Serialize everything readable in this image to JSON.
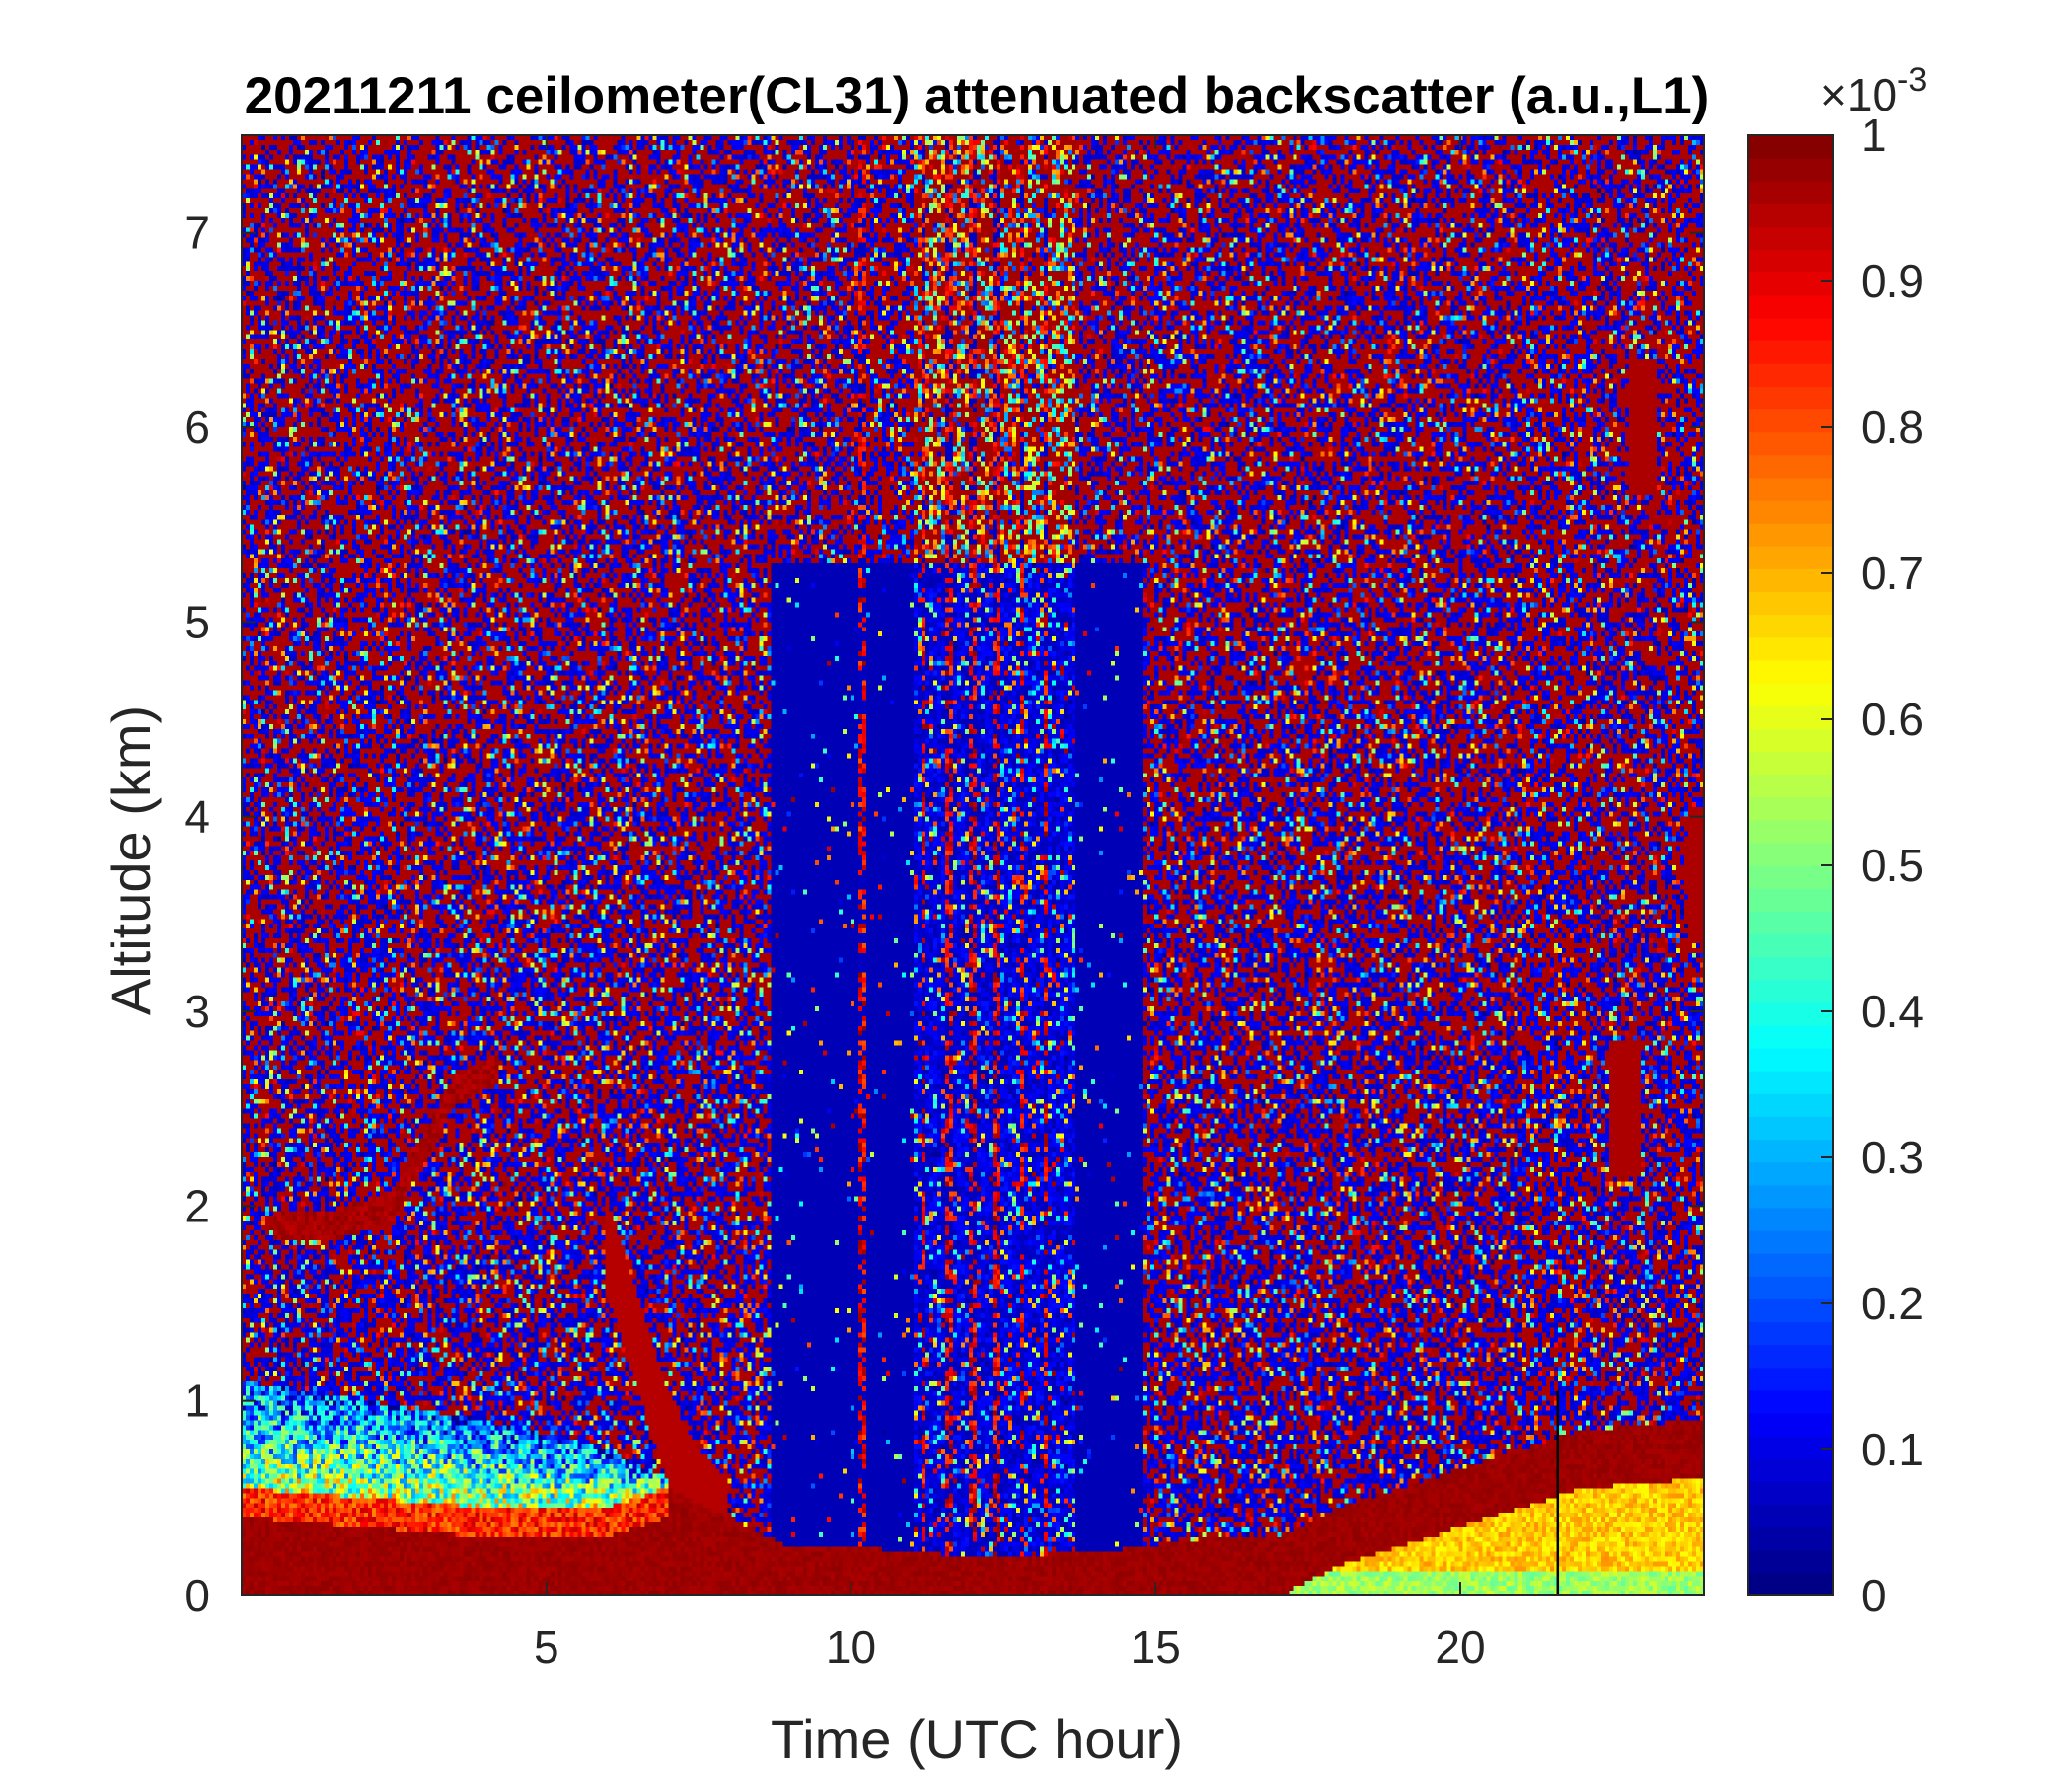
{
  "chart_data": {
    "type": "heatmap",
    "title": "20211211 ceilometer(CL31) attenuated backscatter (a.u.,L1)",
    "xlabel": "Time (UTC hour)",
    "ylabel": "Altitude (km)",
    "xlim": [
      0,
      24
    ],
    "ylim": [
      0,
      7.5
    ],
    "x_ticks": [
      5,
      10,
      15,
      20
    ],
    "y_ticks": [
      0,
      1,
      2,
      3,
      4,
      5,
      6,
      7
    ],
    "colorbar": {
      "ticks": [
        0,
        0.1,
        0.2,
        0.3,
        0.4,
        0.5,
        0.6,
        0.7,
        0.8,
        0.9,
        1
      ],
      "tick_labels": [
        "0",
        "0.1",
        "0.2",
        "0.3",
        "0.4",
        "0.5",
        "0.6",
        "0.7",
        "0.8",
        "0.9",
        "1"
      ],
      "exponent_label": "×10",
      "exponent": "-3",
      "clim": [
        0,
        1
      ],
      "colormap": "jet",
      "levels": 64
    },
    "features": {
      "noisy_upper_background": true,
      "signal_saturation_value": 1,
      "bright_columns_hours": [
        10.2,
        11.2,
        11.6,
        12.0,
        12.4,
        12.8,
        13.2
      ],
      "boundary_layer_top_km": [
        [
          0,
          0.55
        ],
        [
          2,
          0.5
        ],
        [
          4,
          0.45
        ],
        [
          6,
          0.45
        ],
        [
          7,
          0.55
        ],
        [
          8,
          0.4
        ],
        [
          9,
          0.25
        ],
        [
          10,
          0.25
        ],
        [
          12,
          0.2
        ],
        [
          14,
          0.22
        ],
        [
          16,
          0.3
        ],
        [
          17,
          0.3
        ],
        [
          18,
          0.45
        ],
        [
          20,
          0.65
        ],
        [
          22,
          0.85
        ],
        [
          24,
          0.9
        ]
      ],
      "aerosol_layer_top_km": [
        [
          0,
          1.1
        ],
        [
          2,
          1.0
        ],
        [
          4,
          0.9
        ],
        [
          6,
          0.75
        ],
        [
          7,
          0.6
        ]
      ],
      "elevated_layer_km": [
        [
          0.5,
          1.9
        ],
        [
          1.5,
          1.9
        ],
        [
          2.5,
          2.0
        ],
        [
          3.5,
          2.6
        ],
        [
          4.2,
          2.7
        ]
      ],
      "descending_plume": [
        [
          6.0,
          1.8
        ],
        [
          6.5,
          1.3
        ],
        [
          7.0,
          0.8
        ],
        [
          7.5,
          0.5
        ],
        [
          8.0,
          0.35
        ]
      ],
      "small_clouds": [
        [
          23.0,
          6.0
        ],
        [
          22.7,
          2.5
        ],
        [
          24.0,
          3.7
        ]
      ]
    }
  }
}
